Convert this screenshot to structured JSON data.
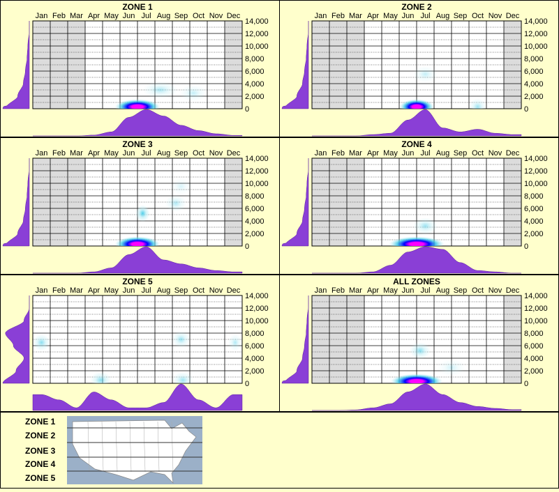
{
  "colors": {
    "background": "#ffffcc",
    "border": "#000000",
    "shaded_month": "#dcdcdc",
    "density_fill": "#8a3fd6",
    "heat_low": "#bfeef5",
    "heat_mid": "#36c7e6",
    "heat_high": "#0000ff",
    "heat_peak": "#ff00ff"
  },
  "months": [
    "Jan",
    "Feb",
    "Mar",
    "Apr",
    "May",
    "Jun",
    "Jul",
    "Aug",
    "Sep",
    "Oct",
    "Nov",
    "Dec"
  ],
  "y_ticks": [
    "0",
    "2,000",
    "4,000",
    "6,000",
    "8,000",
    "10,000",
    "12,000",
    "14,000"
  ],
  "chart_data": [
    {
      "type": "heatmap",
      "title": "ZONE 1",
      "x_categories": [
        "Jan",
        "Feb",
        "Mar",
        "Apr",
        "May",
        "Jun",
        "Jul",
        "Aug",
        "Sep",
        "Oct",
        "Nov",
        "Dec"
      ],
      "ylim": [
        0,
        14000
      ],
      "grid": true,
      "shaded_months": [
        0,
        1,
        2,
        11
      ],
      "hotspots": [
        {
          "month": 6.0,
          "elevation": 300,
          "intensity": 1.0,
          "spread_month": 1.3
        },
        {
          "month": 7.3,
          "elevation": 3000,
          "intensity": 0.2,
          "spread_month": 1.0
        },
        {
          "month": 9.2,
          "elevation": 2500,
          "intensity": 0.15,
          "spread_month": 0.8
        }
      ],
      "month_density": [
        0.0,
        0.0,
        0.0,
        0.03,
        0.15,
        0.7,
        1.0,
        0.75,
        0.4,
        0.2,
        0.08,
        0.02
      ],
      "elevation_density": [
        1.0,
        0.3,
        0.1,
        0.05,
        0.02,
        0.01,
        0.0,
        0.0
      ]
    },
    {
      "type": "heatmap",
      "title": "ZONE 2",
      "x_categories": [
        "Jan",
        "Feb",
        "Mar",
        "Apr",
        "May",
        "Jun",
        "Jul",
        "Aug",
        "Sep",
        "Oct",
        "Nov",
        "Dec"
      ],
      "ylim": [
        0,
        14000
      ],
      "grid": true,
      "shaded_months": [
        0,
        1,
        2,
        11
      ],
      "hotspots": [
        {
          "month": 6.0,
          "elevation": 300,
          "intensity": 1.0,
          "spread_month": 1.0
        },
        {
          "month": 6.5,
          "elevation": 5500,
          "intensity": 0.15,
          "spread_month": 0.7
        },
        {
          "month": 9.5,
          "elevation": 300,
          "intensity": 0.25,
          "spread_month": 0.5
        }
      ],
      "month_density": [
        0.0,
        0.0,
        0.0,
        0.05,
        0.1,
        0.6,
        1.0,
        0.3,
        0.15,
        0.25,
        0.1,
        0.05
      ],
      "elevation_density": [
        1.0,
        0.3,
        0.1,
        0.05,
        0.02,
        0.01,
        0.0,
        0.0
      ]
    },
    {
      "type": "heatmap",
      "title": "ZONE 3",
      "x_categories": [
        "Jan",
        "Feb",
        "Mar",
        "Apr",
        "May",
        "Jun",
        "Jul",
        "Aug",
        "Sep",
        "Oct",
        "Nov",
        "Dec"
      ],
      "ylim": [
        0,
        14000
      ],
      "grid": true,
      "shaded_months": [
        0,
        1,
        2,
        11
      ],
      "hotspots": [
        {
          "month": 6.0,
          "elevation": 300,
          "intensity": 1.0,
          "spread_month": 1.3
        },
        {
          "month": 6.3,
          "elevation": 5200,
          "intensity": 0.45,
          "spread_month": 0.4
        },
        {
          "month": 8.2,
          "elevation": 6800,
          "intensity": 0.2,
          "spread_month": 0.6
        },
        {
          "month": 8.5,
          "elevation": 9500,
          "intensity": 0.1,
          "spread_month": 0.6
        }
      ],
      "month_density": [
        0.0,
        0.0,
        0.0,
        0.05,
        0.2,
        0.7,
        1.0,
        0.5,
        0.35,
        0.2,
        0.1,
        0.05
      ],
      "elevation_density": [
        1.0,
        0.3,
        0.1,
        0.05,
        0.02,
        0.01,
        0.0,
        0.0
      ]
    },
    {
      "type": "heatmap",
      "title": "ZONE 4",
      "x_categories": [
        "Jan",
        "Feb",
        "Mar",
        "Apr",
        "May",
        "Jun",
        "Jul",
        "Aug",
        "Sep",
        "Oct",
        "Nov",
        "Dec"
      ],
      "ylim": [
        0,
        14000
      ],
      "grid": true,
      "shaded_months": [
        0,
        1,
        2,
        11
      ],
      "hotspots": [
        {
          "month": 6.0,
          "elevation": 300,
          "intensity": 1.0,
          "spread_month": 1.6
        },
        {
          "month": 6.5,
          "elevation": 3200,
          "intensity": 0.25,
          "spread_month": 0.7
        }
      ],
      "month_density": [
        0.0,
        0.0,
        0.0,
        0.05,
        0.3,
        0.8,
        1.0,
        0.9,
        0.4,
        0.1,
        0.05,
        0.0
      ],
      "elevation_density": [
        1.0,
        0.3,
        0.1,
        0.05,
        0.02,
        0.01,
        0.0,
        0.0
      ]
    },
    {
      "type": "heatmap",
      "title": "ZONE 5",
      "x_categories": [
        "Jan",
        "Feb",
        "Mar",
        "Apr",
        "May",
        "Jun",
        "Jul",
        "Aug",
        "Sep",
        "Oct",
        "Nov",
        "Dec"
      ],
      "ylim": [
        0,
        14000
      ],
      "grid": true,
      "shaded_months": [],
      "hotspots": [
        {
          "month": 0.5,
          "elevation": 6500,
          "intensity": 0.3,
          "spread_month": 0.5
        },
        {
          "month": 3.9,
          "elevation": 500,
          "intensity": 0.3,
          "spread_month": 0.6
        },
        {
          "month": 8.5,
          "elevation": 7000,
          "intensity": 0.25,
          "spread_month": 0.5
        },
        {
          "month": 8.6,
          "elevation": 500,
          "intensity": 0.25,
          "spread_month": 0.6
        },
        {
          "month": 11.6,
          "elevation": 6500,
          "intensity": 0.2,
          "spread_month": 0.4
        }
      ],
      "month_density": [
        0.6,
        0.4,
        0.1,
        0.7,
        0.4,
        0.1,
        0.1,
        0.3,
        1.0,
        0.4,
        0.1,
        0.6
      ],
      "elevation_density": [
        1.0,
        0.5,
        0.2,
        0.6,
        0.9,
        0.2,
        0.0,
        0.0
      ]
    },
    {
      "type": "heatmap",
      "title": "ALL ZONES",
      "x_categories": [
        "Jan",
        "Feb",
        "Mar",
        "Apr",
        "May",
        "Jun",
        "Jul",
        "Aug",
        "Sep",
        "Oct",
        "Nov",
        "Dec"
      ],
      "ylim": [
        0,
        14000
      ],
      "grid": true,
      "shaded_months": [
        0,
        1,
        2,
        11
      ],
      "hotspots": [
        {
          "month": 6.0,
          "elevation": 300,
          "intensity": 1.0,
          "spread_month": 1.5
        },
        {
          "month": 6.2,
          "elevation": 5200,
          "intensity": 0.3,
          "spread_month": 0.6
        },
        {
          "month": 8.0,
          "elevation": 2500,
          "intensity": 0.12,
          "spread_month": 0.8
        }
      ],
      "month_density": [
        0.0,
        0.0,
        0.02,
        0.1,
        0.25,
        0.7,
        1.0,
        0.6,
        0.3,
        0.15,
        0.08,
        0.03
      ],
      "elevation_density": [
        1.0,
        0.3,
        0.1,
        0.05,
        0.02,
        0.01,
        0.0,
        0.0
      ]
    }
  ],
  "legend": {
    "zones": [
      "ZONE 1",
      "ZONE 2",
      "ZONE 3",
      "ZONE 4",
      "ZONE 5"
    ],
    "map_water": "#9bb0c8",
    "map_land": "#ffffff",
    "map_lines": "#333333"
  }
}
